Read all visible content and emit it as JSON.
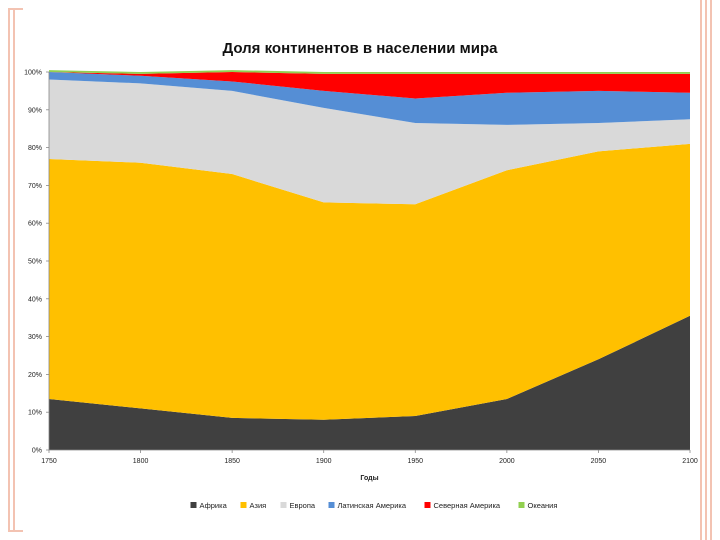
{
  "chart_data": {
    "type": "area",
    "stacked": true,
    "percent": true,
    "title": "Доля континентов в населении мира",
    "xlabel": "Годы",
    "ylabel": "",
    "x": [
      1750,
      1800,
      1850,
      1900,
      1950,
      2000,
      2050,
      2100
    ],
    "x_tick_labels": [
      "1750",
      "1800",
      "1850",
      "1900",
      "1950",
      "2000",
      "2050",
      "2100"
    ],
    "y_tick_labels": [
      "0%",
      "10%",
      "20%",
      "30%",
      "40%",
      "50%",
      "60%",
      "70%",
      "80%",
      "90%",
      "100%"
    ],
    "ylim": [
      0,
      100
    ],
    "grid": false,
    "legend_position": "bottom",
    "series": [
      {
        "name": "Африка",
        "color": "#404040",
        "values": [
          13.5,
          11,
          8.5,
          8,
          9,
          13.5,
          24,
          35.5
        ]
      },
      {
        "name": "Азия",
        "color": "#ffc000",
        "values": [
          63.5,
          65,
          64.5,
          57.5,
          56,
          60.5,
          55,
          45.5
        ]
      },
      {
        "name": "Европа",
        "color": "#d9d9d9",
        "values": [
          21,
          21,
          22,
          25,
          21.5,
          12,
          7.5,
          6.5
        ]
      },
      {
        "name": "Латинская Америка",
        "color": "#558ed5",
        "values": [
          2,
          2,
          2.5,
          4.5,
          6.5,
          8.5,
          8.5,
          7
        ]
      },
      {
        "name": "Северная Америка",
        "color": "#ff0000",
        "values": [
          0,
          0.5,
          2.5,
          4.5,
          6.5,
          5,
          4.5,
          5
        ]
      },
      {
        "name": "Океания",
        "color": "#92d050",
        "values": [
          0.5,
          0.5,
          0.5,
          0.5,
          0.5,
          0.5,
          0.5,
          0.5
        ]
      }
    ]
  }
}
